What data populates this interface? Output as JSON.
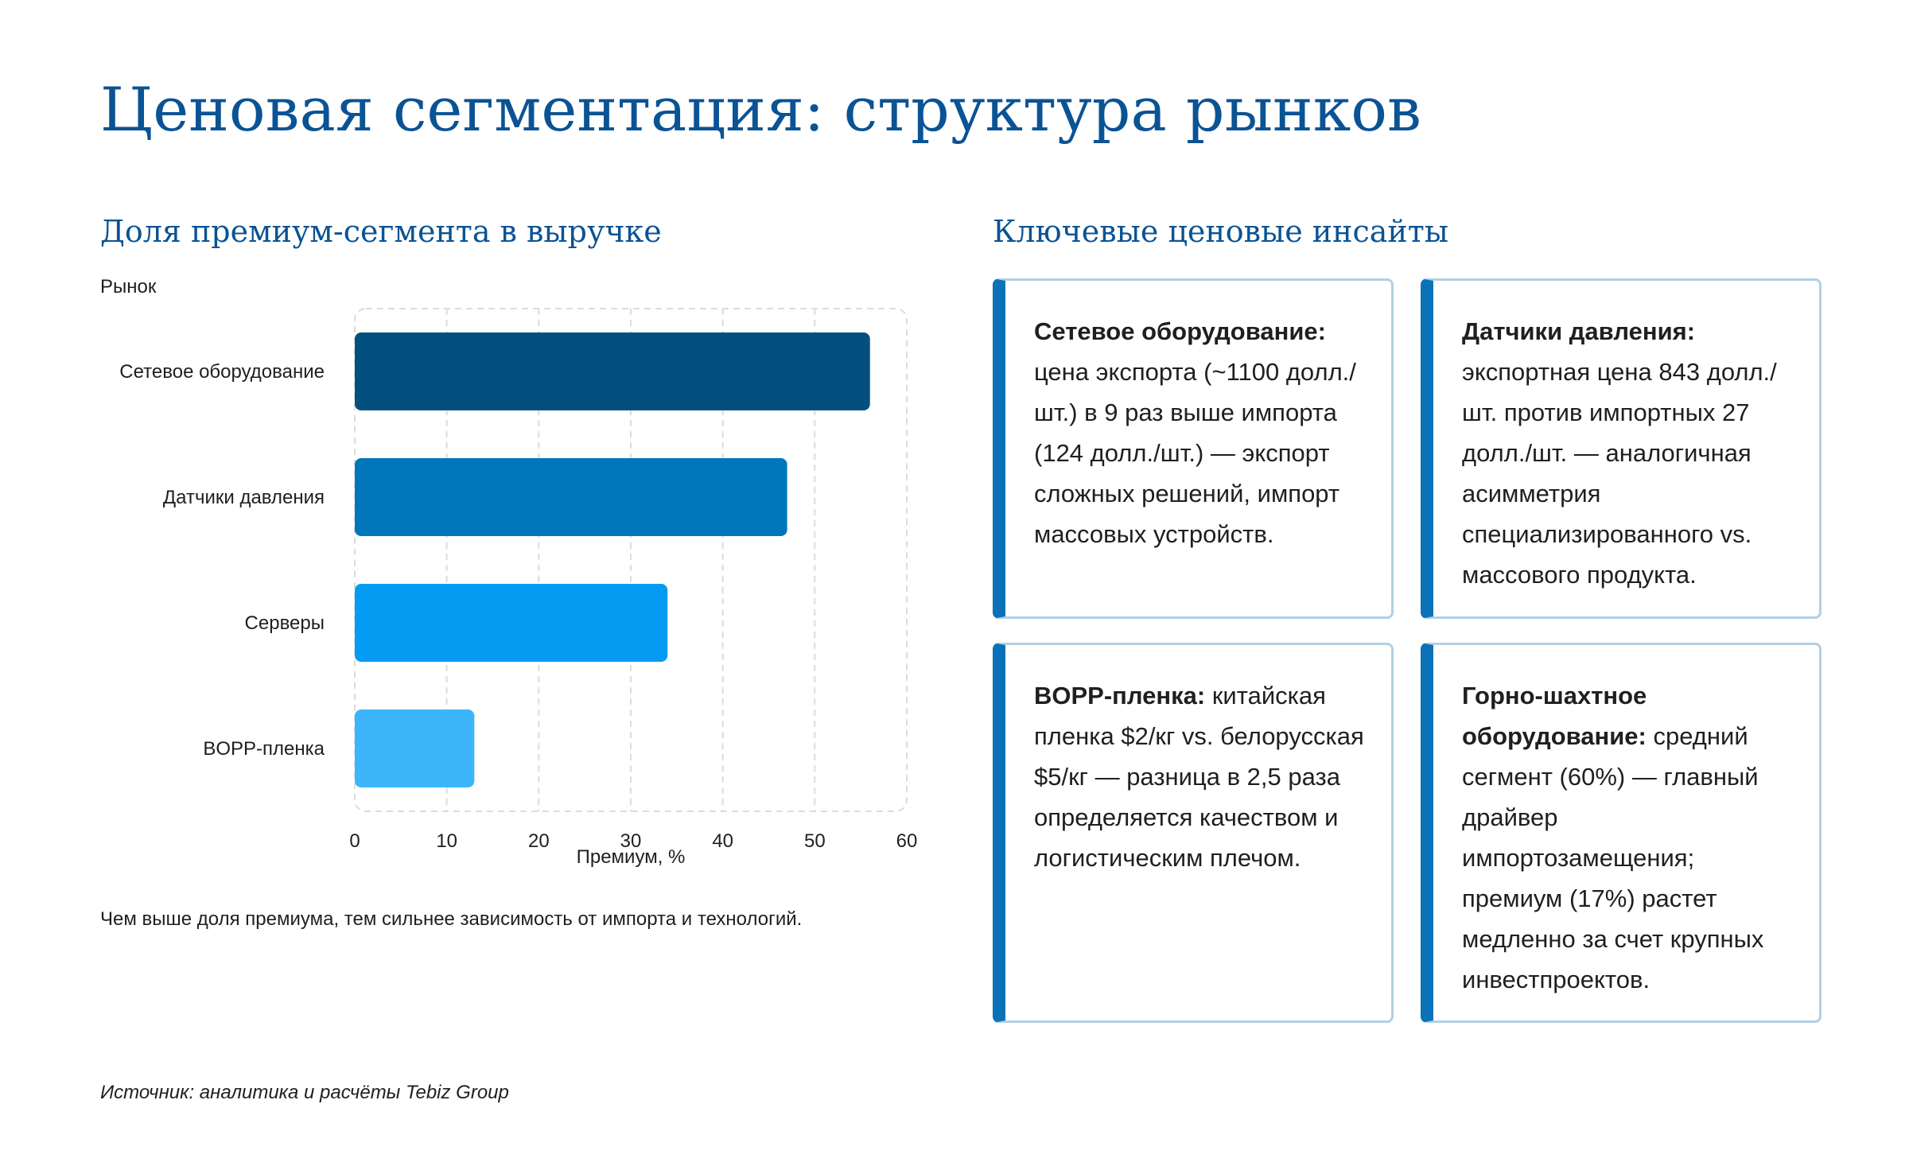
{
  "title": "Ценовая сегментация: структура рынков",
  "chart_section_title": "Доля премиум-сегмента в выручке",
  "insights_section_title": "Ключевые ценовые инсайты",
  "chart_note": "Чем выше доля премиума, тем сильнее зависимость от импорта и технологий.",
  "source": "Источник: аналитика и расчёты Tebiz Group",
  "chart_data": {
    "type": "bar",
    "orientation": "horizontal",
    "ylabel": "Рынок",
    "xlabel": "Премиум, %",
    "xlim": [
      0,
      60
    ],
    "xticks": [
      0,
      10,
      20,
      30,
      40,
      50,
      60
    ],
    "grid": true,
    "categories": [
      "Сетевое оборудование",
      "Датчики давления",
      "Серверы",
      "BOPP-пленка"
    ],
    "values": [
      56,
      47,
      34,
      13
    ],
    "colors": [
      "#03507f",
      "#0276bb",
      "#069bf2",
      "#3db5fb"
    ]
  },
  "insights": [
    {
      "title": "Сетевое оборудование:",
      "text": "цена экспорта (~1100 долл./шт.) в 9 раз выше импорта (124 долл./шт.) — экспорт сложных решений, импорт массовых устройств."
    },
    {
      "title": "Датчики давления:",
      "text": "экспортная цена 843 долл./шт. против импортных 27 долл./шт. — аналогичная асимметрия специализированного vs. массового продукта."
    },
    {
      "title": "BOPP-пленка:",
      "text": "китайская пленка $2/кг vs. белорусская $5/кг — разница в 2,5 раза определяется качеством и логистическим плечом."
    },
    {
      "title": "Горно-шахтное оборудование:",
      "text": "средний сегмент (60%) — главный драйвер импортозамещения; премиум (17%) растет медленно за счет крупных инвестпроектов."
    }
  ]
}
